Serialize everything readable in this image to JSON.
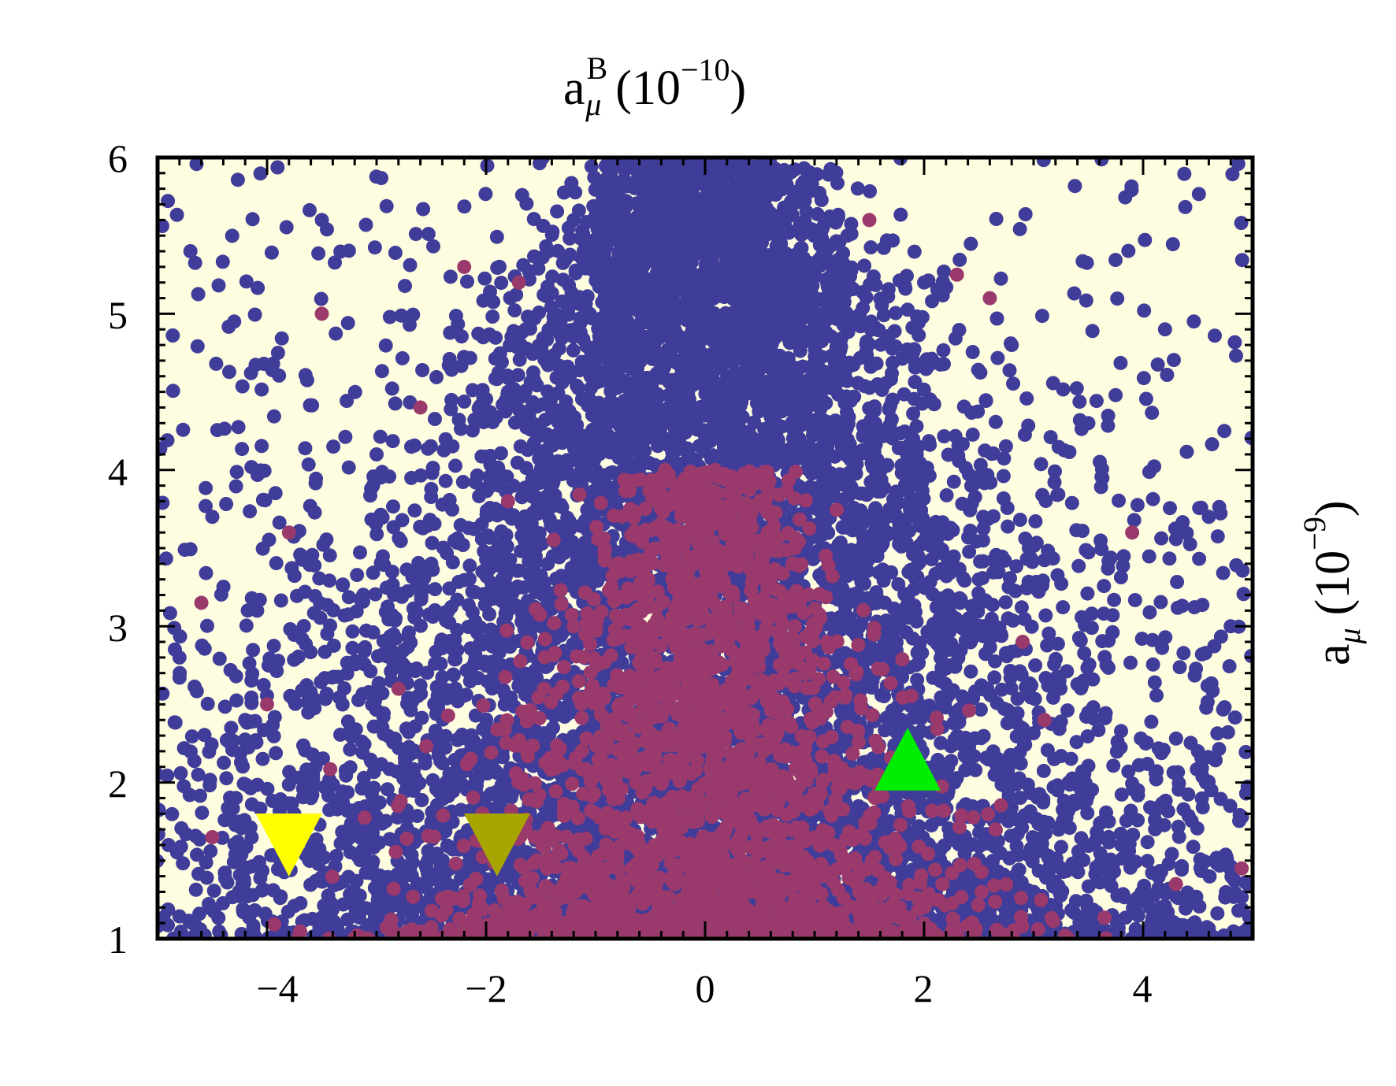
{
  "chart_data": {
    "type": "scatter",
    "title": "",
    "xlabel": "a_μ^B (10^−10)",
    "xlabel_parts": {
      "base": "a",
      "sub": "μ",
      "sup": "B",
      "unit_open": "(10",
      "unit_exp": "−10",
      "unit_close": ")"
    },
    "ylabel": "a_μ (10^−9)",
    "ylabel_parts": {
      "base": "a",
      "sub": "μ",
      "unit_open": "(10",
      "unit_exp": "−9",
      "unit_close": ")"
    },
    "xlim": [
      -5,
      5
    ],
    "ylim": [
      1,
      6
    ],
    "xticks": [
      -4,
      -2,
      0,
      2,
      4
    ],
    "xtick_labels": [
      "−4",
      "−2",
      "0",
      "2",
      "4"
    ],
    "yticks": [
      1,
      2,
      3,
      4,
      5,
      6
    ],
    "ytick_labels": [
      "1",
      "2",
      "3",
      "4",
      "5",
      "6"
    ],
    "plot_background": "#fffde0",
    "grid": false,
    "legend": "none",
    "series": [
      {
        "color": "#3f3d99",
        "point_count": 9000,
        "distribution": "broad cone centred at x=0, width increasing toward low y",
        "sample_points": [
          [
            -4.7,
            5.4
          ],
          [
            -4.3,
            4.95
          ],
          [
            -3.9,
            4.75
          ],
          [
            -3.5,
            5.6
          ],
          [
            -3.0,
            4.1
          ],
          [
            -4.5,
            3.7
          ],
          [
            -4.8,
            2.8
          ],
          [
            -4.2,
            2.4
          ],
          [
            -3.6,
            1.9
          ],
          [
            -2.5,
            3.4
          ],
          [
            -1.8,
            4.5
          ],
          [
            -1.2,
            5.6
          ],
          [
            -0.4,
            5.9
          ],
          [
            0.5,
            5.8
          ],
          [
            1.3,
            5.5
          ],
          [
            2.0,
            5.2
          ],
          [
            2.8,
            4.8
          ],
          [
            3.5,
            4.3
          ],
          [
            4.2,
            4.9
          ],
          [
            4.6,
            3.7
          ],
          [
            4.8,
            3.0
          ],
          [
            4.5,
            2.2
          ],
          [
            3.8,
            1.6
          ],
          [
            3.0,
            1.3
          ],
          [
            -2.9,
            1.2
          ],
          [
            -4.9,
            1.6
          ],
          [
            1.9,
            4.2
          ],
          [
            -1.0,
            4.0
          ],
          [
            0.0,
            4.4
          ],
          [
            2.5,
            3.3
          ]
        ]
      },
      {
        "color": "#9a3a6c",
        "point_count": 2600,
        "distribution": "dense core centred at x=0, concentrated at low y",
        "sample_points": [
          [
            -3.5,
            5.0
          ],
          [
            -2.2,
            5.3
          ],
          [
            -1.7,
            5.2
          ],
          [
            -2.6,
            4.4
          ],
          [
            -3.8,
            3.6
          ],
          [
            -4.6,
            3.15
          ],
          [
            -4.0,
            2.5
          ],
          [
            -2.8,
            2.6
          ],
          [
            -1.8,
            3.8
          ],
          [
            2.3,
            5.25
          ],
          [
            2.6,
            5.1
          ],
          [
            1.5,
            5.6
          ],
          [
            3.9,
            3.6
          ],
          [
            2.9,
            2.9
          ],
          [
            3.1,
            2.4
          ],
          [
            4.3,
            1.35
          ],
          [
            4.9,
            1.45
          ],
          [
            -4.5,
            1.65
          ],
          [
            -0.5,
            2.5
          ],
          [
            0.4,
            2.2
          ],
          [
            0.8,
            3.4
          ],
          [
            -1.2,
            3.0
          ],
          [
            0.0,
            1.6
          ],
          [
            1.3,
            2.0
          ],
          [
            -0.8,
            1.3
          ]
        ]
      }
    ],
    "markers": [
      {
        "shape": "triangle-down",
        "color": "#ffff00",
        "x": -3.8,
        "y": 1.6
      },
      {
        "shape": "triangle-down",
        "color": "#a8a400",
        "x": -1.9,
        "y": 1.6
      },
      {
        "shape": "triangle-up",
        "color": "#00ee00",
        "x": 1.85,
        "y": 2.15
      }
    ]
  }
}
